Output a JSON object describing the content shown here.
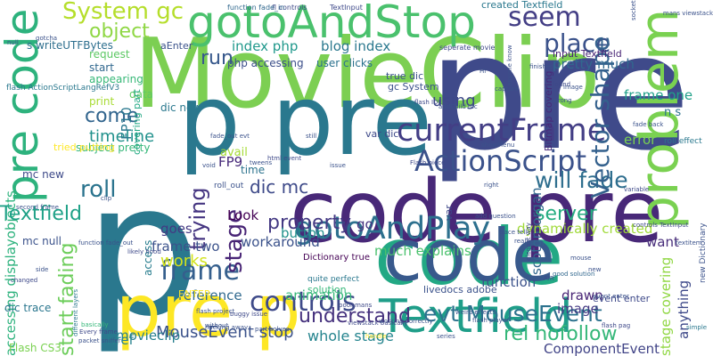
{
  "word_cloud": {
    "background": "#ffffff",
    "words": [
      {
        "text": "MovieClip",
        "color": "#7ccf52"
      },
      {
        "text": "p",
        "color": "#2a788e"
      },
      {
        "text": "pre",
        "color": "#3f4a8a"
      },
      {
        "text": "code",
        "color": "#22a884"
      },
      {
        "text": "code pre",
        "color": "#482878"
      },
      {
        "text": "pre code",
        "color": "#2db27d"
      },
      {
        "text": "code",
        "color": "#38598c"
      },
      {
        "text": "problem",
        "color": "#7ad151"
      },
      {
        "text": "p pre",
        "color": "#2a788e"
      },
      {
        "text": "gotoAndStop",
        "color": "#4ac16d"
      },
      {
        "text": "pre p",
        "color": "#fde725"
      },
      {
        "text": "Textfield",
        "color": "#1f9e89"
      },
      {
        "text": "currentFrame",
        "color": "#433e85"
      },
      {
        "text": "ActionScript",
        "color": "#3b528b"
      },
      {
        "text": "gotoAndPlay",
        "color": "#2d708e"
      },
      {
        "text": "frame",
        "color": "#355f8d"
      },
      {
        "text": "controls",
        "color": "#3e4a89"
      },
      {
        "text": "evt MouseEvent",
        "color": "#2c728e"
      },
      {
        "text": "rel nofollow",
        "color": "#35b779"
      },
      {
        "text": "understand",
        "color": "#46327e"
      },
      {
        "text": "System gc",
        "color": "#b5de2b"
      },
      {
        "text": "seem",
        "color": "#433e85"
      },
      {
        "text": "place",
        "color": "#3b528b"
      },
      {
        "text": "object",
        "color": "#8fd744"
      },
      {
        "text": "will fade",
        "color": "#2e6e8e"
      },
      {
        "text": "roll",
        "color": "#2b748e"
      },
      {
        "text": "stage",
        "color": "#482475"
      },
      {
        "text": "trying",
        "color": "#453581"
      },
      {
        "text": "come",
        "color": "#32658e"
      },
      {
        "text": "run",
        "color": "#38598c"
      },
      {
        "text": "server",
        "color": "#26ad81"
      },
      {
        "text": "Vector shape",
        "color": "#34618d"
      },
      {
        "text": "start fading",
        "color": "#6ccd5a"
      },
      {
        "text": "property",
        "color": "#443983"
      },
      {
        "text": "works",
        "color": "#d2e21b"
      },
      {
        "text": "MouseEvent stop",
        "color": "#3b528b"
      },
      {
        "text": "whole stage",
        "color": "#25848e"
      },
      {
        "text": "timeline",
        "color": "#21918c"
      },
      {
        "text": "using",
        "color": "#3e4989"
      },
      {
        "text": "index php",
        "color": "#1f988b"
      },
      {
        "text": "blog index",
        "color": "#2a788e"
      },
      {
        "text": "accessing displayobjects",
        "color": "#2db27d"
      },
      {
        "text": "Textfield",
        "color": "#1fa187"
      },
      {
        "text": "movieclip",
        "color": "#277f8e"
      },
      {
        "text": "frame one",
        "color": "#1fa088"
      },
      {
        "text": "dic mc",
        "color": "#3e4a89"
      },
      {
        "text": "FP9",
        "color": "#472a7a"
      },
      {
        "text": "workaround",
        "color": "#3b528b"
      },
      {
        "text": "pretty much",
        "color": "#31688e"
      },
      {
        "text": "FP10",
        "color": "#2a788e"
      },
      {
        "text": "want",
        "color": "#472c7a"
      },
      {
        "text": "reference",
        "color": "#30698e"
      },
      {
        "text": "ComponentEvent",
        "color": "#414487"
      },
      {
        "text": "href",
        "color": "#26828e"
      },
      {
        "text": "function",
        "color": "#3b528b"
      },
      {
        "text": "stage covering",
        "color": "#90d743"
      },
      {
        "text": "animation",
        "color": "#35b779"
      },
      {
        "text": "drawn",
        "color": "#482475"
      },
      {
        "text": "scotgmorgan",
        "color": "#31688e"
      },
      {
        "text": "anything",
        "color": "#3e4989"
      },
      {
        "text": "button",
        "color": "#21918c"
      },
      {
        "text": "image",
        "color": "#443a83"
      },
      {
        "text": "dynamically created",
        "color": "#a0da39"
      },
      {
        "text": "error",
        "color": "#7ad151"
      },
      {
        "text": "much explains",
        "color": "#4ac16d"
      },
      {
        "text": "go",
        "color": "#46337f"
      },
      {
        "text": "frame two",
        "color": "#3b528b"
      },
      {
        "text": "goes",
        "color": "#443983"
      },
      {
        "text": "access",
        "color": "#287d8e"
      },
      {
        "text": "time",
        "color": "#2c738e"
      },
      {
        "text": "Look",
        "color": "#440154"
      },
      {
        "text": "subject pretty",
        "color": "#35b779"
      },
      {
        "text": "mc new",
        "color": "#3e4a89"
      },
      {
        "text": "mc null",
        "color": "#3b528b"
      },
      {
        "text": "data",
        "color": "#5ec962"
      },
      {
        "text": "request",
        "color": "#5cc863"
      },
      {
        "text": "start",
        "color": "#31688e"
      },
      {
        "text": "appearing",
        "color": "#37b878"
      },
      {
        "text": "s writeUTFBytes",
        "color": "#2e6f8e"
      },
      {
        "text": "print",
        "color": "#a8db34"
      },
      {
        "text": "user clicks",
        "color": "#2c728e"
      },
      {
        "text": "php accessing",
        "color": "#3c4f8a"
      },
      {
        "text": "input Textfield",
        "color": "#482475"
      },
      {
        "text": "var",
        "color": "#3e4989"
      },
      {
        "text": "Bitmap covering",
        "color": "#482878"
      },
      {
        "text": "Flash CS3",
        "color": "#7ad151"
      },
      {
        "text": "dic trace",
        "color": "#2a768e"
      },
      {
        "text": "livedocs adobe",
        "color": "#3b528b"
      },
      {
        "text": "n s",
        "color": "#2c728e"
      },
      {
        "text": "solution",
        "color": "#35b779"
      },
      {
        "text": "avail",
        "color": "#a5db36"
      },
      {
        "text": "event enter",
        "color": "#3e4989"
      },
      {
        "text": "ENTER",
        "color": "#fde725"
      },
      {
        "text": "tried putting",
        "color": "#fde725"
      },
      {
        "text": "dic new",
        "color": "#2a788e"
      },
      {
        "text": "created Textfield",
        "color": "#2a788e"
      },
      {
        "text": "aEnter",
        "color": "#3b528b"
      },
      {
        "text": "flash ActionScriptLangRefV3",
        "color": "#2a788e"
      },
      {
        "text": "covering part",
        "color": "#22a884"
      },
      {
        "text": "var dic",
        "color": "#3e4989"
      },
      {
        "text": "true dic",
        "color": "#3b528b"
      },
      {
        "text": "gc System",
        "color": "#3b528b"
      },
      {
        "text": "Dictionary true",
        "color": "#440154"
      },
      {
        "text": "quite perfect",
        "color": "#2a788e"
      },
      {
        "text": "TextInput",
        "color": "#3e4989"
      },
      {
        "text": "fl controls",
        "color": "#3e4989"
      },
      {
        "text": "function fade_in",
        "color": "#31688e"
      },
      {
        "text": "roll_out",
        "color": "#3b528b"
      },
      {
        "text": "roll effect",
        "color": "#2a788e"
      },
      {
        "text": "new Dictionary",
        "color": "#3b528b"
      },
      {
        "text": "Flash piece",
        "color": "#3e4989"
      },
      {
        "text": "good solution",
        "color": "#31688e"
      },
      {
        "text": "showMenu",
        "color": "#3b528b"
      },
      {
        "text": "controls TextInput",
        "color": "#3e4989"
      },
      {
        "text": "flash player",
        "color": "#3b528b"
      },
      {
        "text": "AIR",
        "color": "#3e4989"
      },
      {
        "text": "seperate movie",
        "color": "#3e4989"
      },
      {
        "text": "finished",
        "color": "#3b528b"
      },
      {
        "text": "anyone know",
        "color": "#3b528b"
      },
      {
        "text": "found",
        "color": "#3e4989"
      },
      {
        "text": "wrong",
        "color": "#3b528b"
      },
      {
        "text": "buggy issue",
        "color": "#3e4989"
      },
      {
        "text": "hacking away",
        "color": "#3b528b"
      },
      {
        "text": "different layers",
        "color": "#2a788e"
      },
      {
        "text": "basically",
        "color": "#35b779"
      },
      {
        "text": "flash pag",
        "color": "#3e4989"
      },
      {
        "text": "simple",
        "color": "#2a788e"
      },
      {
        "text": "working correctly",
        "color": "#3b528b"
      },
      {
        "text": "poor mans",
        "color": "#3e4989"
      },
      {
        "text": "event enter",
        "color": "#3b528b"
      },
      {
        "text": "fade back",
        "color": "#3b528b"
      },
      {
        "text": "html event",
        "color": "#3e4989"
      },
      {
        "text": "still",
        "color": "#3b528b"
      },
      {
        "text": "variable",
        "color": "#3e4989"
      },
      {
        "text": "tweens",
        "color": "#3b528b"
      },
      {
        "text": "function fade_out",
        "color": "#3b528b"
      },
      {
        "text": "Every frame",
        "color": "#3e4989"
      },
      {
        "text": "part solves",
        "color": "#3b528b"
      },
      {
        "text": "weird effects",
        "color": "#3b528b"
      },
      {
        "text": "likely hood",
        "color": "#3e4989"
      },
      {
        "text": "flash project",
        "color": "#3b528b"
      },
      {
        "text": "socket",
        "color": "#3b528b"
      },
      {
        "text": "mans viewstack",
        "color": "#3b528b"
      },
      {
        "text": "viewstack basically",
        "color": "#3e4989"
      },
      {
        "text": "handle",
        "color": "#fde725"
      },
      {
        "text": "series",
        "color": "#3b528b"
      },
      {
        "text": "without",
        "color": "#3b528b"
      },
      {
        "text": "addChild mc",
        "color": "#3b528b"
      },
      {
        "text": "flash IDE",
        "color": "#3e4989"
      },
      {
        "text": "capture",
        "color": "#3b528b"
      },
      {
        "text": "Hi",
        "color": "#3b528b"
      },
      {
        "text": "second frame",
        "color": "#3b528b"
      },
      {
        "text": "packet sniffer",
        "color": "#3b528b"
      },
      {
        "text": "elegant way",
        "color": "#3e4989"
      },
      {
        "text": "fade_out evt",
        "color": "#3b528b"
      },
      {
        "text": "right",
        "color": "#3b528b"
      },
      {
        "text": "add question",
        "color": "#3b528b"
      },
      {
        "text": "trace tell",
        "color": "#3b528b"
      },
      {
        "text": "really",
        "color": "#3b528b"
      },
      {
        "text": "textitem",
        "color": "#3b528b"
      },
      {
        "text": "mouse",
        "color": "#3b528b"
      },
      {
        "text": "new",
        "color": "#3b528b"
      },
      {
        "text": "changed",
        "color": "#3e4989"
      },
      {
        "text": "side",
        "color": "#3b528b"
      },
      {
        "text": "clip",
        "color": "#3b528b"
      },
      {
        "text": "gotcha",
        "color": "#3b528b"
      },
      {
        "text": "void",
        "color": "#3b528b"
      },
      {
        "text": "null",
        "color": "#3b528b"
      },
      {
        "text": "issue",
        "color": "#3b528b"
      },
      {
        "text": "image",
        "color": "#3b528b"
      }
    ]
  }
}
